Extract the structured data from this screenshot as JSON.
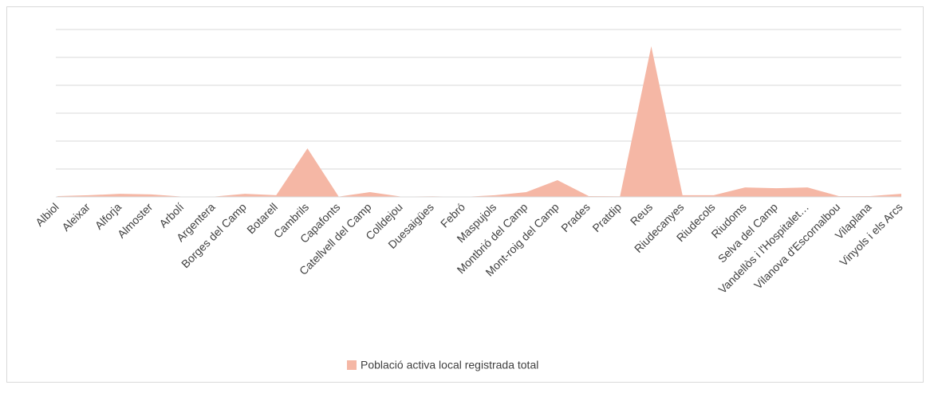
{
  "chart_data": {
    "type": "area",
    "categories": [
      "Albiol",
      "Aleixar",
      "Alforja",
      "Almoster",
      "Arbolí",
      "Argentera",
      "Borges del Camp",
      "Botarell",
      "Cambrils",
      "Capafonts",
      "Catellvell del Camp",
      "Colldejou",
      "Duesaigües",
      "Febró",
      "Maspujols",
      "Montbrió del Camp",
      "Mont-roig del Camp",
      "Prades",
      "Pratdip",
      "Reus",
      "Riudecanyes",
      "Riudecols",
      "Riudoms",
      "Selva del Camp",
      "Vandellòs i l'Hospitalet…",
      "Vilanova d'Escornalbou",
      "Vilaplana",
      "Vinyols i els Arcs"
    ],
    "series": [
      {
        "name": "Població activa local registrada total",
        "color": "#f5b7a5",
        "values": [
          0.03,
          0.06,
          0.11,
          0.09,
          0.01,
          0.01,
          0.11,
          0.06,
          1.74,
          0.01,
          0.17,
          0.01,
          0.02,
          0,
          0.06,
          0.17,
          0.6,
          0.03,
          0.02,
          5.4,
          0.06,
          0.06,
          0.34,
          0.31,
          0.34,
          0.03,
          0.03,
          0.11
        ]
      }
    ],
    "ylim": [
      0,
      6
    ],
    "yticks": [
      0,
      1,
      2,
      3,
      4,
      5,
      6
    ],
    "grid": true,
    "legend": "bottom"
  }
}
